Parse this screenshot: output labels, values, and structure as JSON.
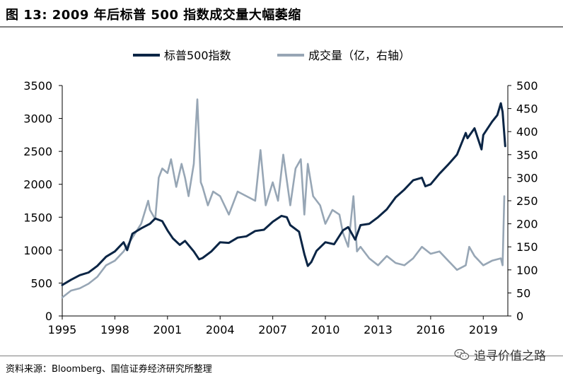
{
  "header": {
    "title": "图 13: 2009 年后标普 500 指数成交量大幅萎缩"
  },
  "footer": {
    "source": "资料来源：Bloomberg、国信证券经济研究所整理",
    "watermark": "追寻价值之路"
  },
  "colors": {
    "spx": "#0b2545",
    "volume": "#97a6b5",
    "axis": "#000000",
    "rule": "#7f7f7f"
  },
  "chart_data": {
    "type": "line",
    "title": "",
    "legend_position": "top-center",
    "x_ticks": [
      "1995",
      "1998",
      "2001",
      "2004",
      "2007",
      "2010",
      "2013",
      "2016",
      "2019"
    ],
    "xlim": [
      1995,
      2020.4
    ],
    "y_left": {
      "lim": [
        0,
        3500
      ],
      "ticks": [
        "0",
        "500",
        "1000",
        "1500",
        "2000",
        "2500",
        "3000",
        "3500"
      ]
    },
    "y_right": {
      "lim": [
        0,
        500
      ],
      "ticks": [
        "0",
        "50",
        "100",
        "150",
        "200",
        "250",
        "300",
        "350",
        "400",
        "450",
        "500"
      ]
    },
    "series": [
      {
        "name": "标普500指数",
        "axis": "left",
        "x": [
          1995,
          1995.5,
          1996,
          1996.5,
          1997,
          1997.5,
          1998,
          1998.5,
          1998.7,
          1999,
          1999.5,
          2000,
          2000.3,
          2000.7,
          2001,
          2001.3,
          2001.7,
          2002,
          2002.5,
          2002.8,
          2003,
          2003.5,
          2004,
          2004.5,
          2005,
          2005.5,
          2006,
          2006.5,
          2007,
          2007.5,
          2007.8,
          2008,
          2008.5,
          2008.8,
          2009,
          2009.2,
          2009.5,
          2010,
          2010.5,
          2011,
          2011.3,
          2011.7,
          2012,
          2012.5,
          2013,
          2013.5,
          2014,
          2014.5,
          2015,
          2015.5,
          2015.7,
          2016,
          2016.5,
          2017,
          2017.5,
          2018,
          2018.1,
          2018.5,
          2018.9,
          2019,
          2019.5,
          2019.8,
          2020,
          2020.1,
          2020.25
        ],
        "values": [
          470,
          550,
          620,
          660,
          760,
          900,
          980,
          1120,
          1000,
          1250,
          1330,
          1400,
          1480,
          1440,
          1300,
          1180,
          1080,
          1140,
          980,
          860,
          880,
          980,
          1120,
          1110,
          1190,
          1210,
          1290,
          1310,
          1430,
          1520,
          1500,
          1380,
          1280,
          940,
          760,
          820,
          990,
          1120,
          1090,
          1300,
          1350,
          1160,
          1380,
          1400,
          1500,
          1620,
          1800,
          1920,
          2060,
          2100,
          1970,
          2000,
          2160,
          2300,
          2450,
          2780,
          2700,
          2850,
          2530,
          2750,
          2950,
          3050,
          3230,
          3100,
          2580
        ]
      },
      {
        "name": "成交量（亿，右轴）",
        "axis": "right",
        "x": [
          1995,
          1995.5,
          1996,
          1996.5,
          1997,
          1997.5,
          1998,
          1998.5,
          1999,
          1999.5,
          1999.9,
          2000,
          2000.3,
          2000.5,
          2000.7,
          2001,
          2001.2,
          2001.5,
          2001.8,
          2002,
          2002.2,
          2002.5,
          2002.7,
          2002.9,
          2003,
          2003.3,
          2003.6,
          2004,
          2004.5,
          2005,
          2005.5,
          2006,
          2006.3,
          2006.6,
          2007,
          2007.3,
          2007.6,
          2008,
          2008.3,
          2008.6,
          2008.8,
          2009,
          2009.3,
          2009.7,
          2010,
          2010.4,
          2010.8,
          2011,
          2011.3,
          2011.6,
          2011.8,
          2012,
          2012.5,
          2013,
          2013.5,
          2014,
          2014.5,
          2015,
          2015.5,
          2016,
          2016.5,
          2017,
          2017.5,
          2018,
          2018.2,
          2018.5,
          2019,
          2019.5,
          2020,
          2020.1,
          2020.2
        ],
        "values": [
          40,
          55,
          60,
          70,
          85,
          110,
          120,
          140,
          170,
          200,
          250,
          230,
          210,
          300,
          320,
          310,
          340,
          280,
          330,
          300,
          260,
          330,
          470,
          290,
          280,
          240,
          270,
          260,
          220,
          270,
          260,
          250,
          360,
          240,
          290,
          250,
          350,
          240,
          320,
          340,
          220,
          330,
          260,
          240,
          200,
          230,
          220,
          180,
          150,
          260,
          140,
          150,
          125,
          110,
          130,
          115,
          110,
          125,
          150,
          135,
          140,
          120,
          100,
          110,
          150,
          130,
          110,
          120,
          125,
          110,
          260
        ]
      }
    ]
  }
}
